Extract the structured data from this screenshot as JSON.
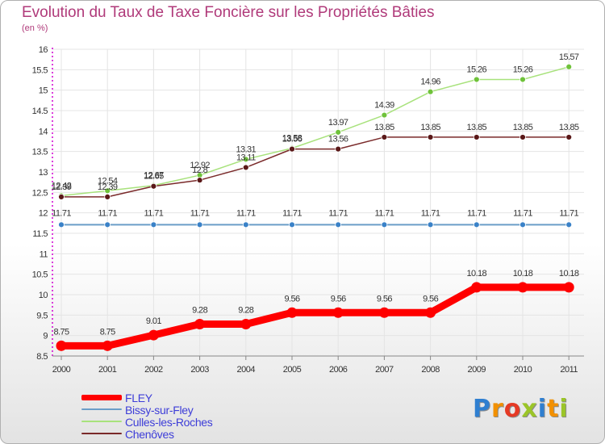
{
  "title": "Evolution du Taux de Taxe Foncière sur les Propriétés Bâties",
  "subtitle": "(en %)",
  "logo": {
    "text": "Proxiti",
    "letter_colors": [
      "#2f7fd0",
      "#f29000",
      "#e53a25",
      "#9bc528",
      "#2f7fd0",
      "#f29000",
      "#9bc528"
    ]
  },
  "chart_data": {
    "type": "line",
    "title": "Evolution du Taux de Taxe Foncière sur les Propriétés Bâties",
    "ylabel": "(en %)",
    "xlabel": "",
    "categories": [
      "2000",
      "2001",
      "2002",
      "2003",
      "2004",
      "2005",
      "2006",
      "2007",
      "2008",
      "2009",
      "2010",
      "2011"
    ],
    "ylim": [
      8.5,
      16
    ],
    "yticks": [
      "8.5",
      "9",
      "9.5",
      "10",
      "10.5",
      "11",
      "11.5",
      "12",
      "12.5",
      "13",
      "13.5",
      "14",
      "14.5",
      "15",
      "15.5",
      "16"
    ],
    "grid": true,
    "series": [
      {
        "name": "FLEY",
        "color": "#ff0000",
        "marker_color": "#ff0000",
        "values": [
          8.75,
          8.75,
          9.01,
          9.28,
          9.28,
          9.56,
          9.56,
          9.56,
          9.56,
          10.18,
          10.18,
          10.18
        ],
        "labels": [
          "8.75",
          "8.75",
          "9.01",
          "9.28",
          "9.28",
          "9.56",
          "9.56",
          "9.56",
          "9.56",
          "10.18",
          "10.18",
          "10.18"
        ]
      },
      {
        "name": "Bissy-sur-Fley",
        "color": "#6b9ec8",
        "marker_color": "#3a82c8",
        "values": [
          11.71,
          11.71,
          11.71,
          11.71,
          11.71,
          11.71,
          11.71,
          11.71,
          11.71,
          11.71,
          11.71,
          11.71
        ],
        "labels": [
          "11.71",
          "11.71",
          "11.71",
          "11.71",
          "11.71",
          "11.71",
          "11.71",
          "11.71",
          "11.71",
          "11.71",
          "11.71",
          "11.71"
        ]
      },
      {
        "name": "Culles-les-Roches",
        "color": "#a8e27c",
        "marker_color": "#6fc23a",
        "values": [
          12.42,
          12.54,
          12.67,
          12.92,
          13.31,
          13.58,
          13.97,
          14.39,
          14.96,
          15.26,
          15.26,
          15.57
        ],
        "labels": [
          "12.42",
          "12.54",
          "12.67",
          "12.92",
          "13.31",
          "13.58",
          "13.97",
          "14.39",
          "14.96",
          "15.26",
          "15.26",
          "15.57"
        ]
      },
      {
        "name": "Chenôves",
        "color": "#7a2a2a",
        "marker_color": "#5a1818",
        "values": [
          12.39,
          12.39,
          12.65,
          12.8,
          13.11,
          13.56,
          13.56,
          13.85,
          13.85,
          13.85,
          13.85,
          13.85
        ],
        "labels": [
          "12.39",
          "12.39",
          "12.65",
          "12.8",
          "13.11",
          "13.56",
          "13.56",
          "13.85",
          "13.85",
          "13.85",
          "13.85",
          "13.85"
        ]
      }
    ]
  }
}
